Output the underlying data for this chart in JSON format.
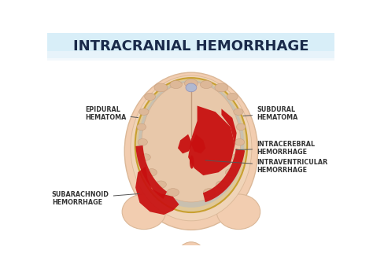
{
  "title": "INTRACRANIAL HEMORRHAGE",
  "title_fontsize": 13,
  "title_color": "#1a2a4a",
  "title_bg_top": "#daeef8",
  "title_bg_bot": "#ffffff",
  "background_color": "#ffffff",
  "skin_color": "#f2cdb0",
  "skin_edge_color": "#dbb898",
  "skull_outer_color": "#f0d4b8",
  "skull_inner_color": "#e8c8a8",
  "dura_color": "#e0c898",
  "dura_line_color": "#c8a030",
  "subarachnoid_color": "#d4c4b0",
  "brain_color": "#e8c8aa",
  "brain_edge_color": "#d4b090",
  "gyri_color": "#ddb898",
  "gyri_edge": "#c8a080",
  "sulci_color": "#c8a888",
  "blood_color": "#c81010",
  "blood_dark": "#a00808",
  "lavender": "#b0b8d0",
  "lavender_edge": "#9090b8",
  "labels": {
    "epidural": "EPIDURAL\nHEMATOMA",
    "subdural": "SUBDURAL\nHEMATOMA",
    "intracerebral": "INTRACEREBRAL\nHEMORRHAGE",
    "intraventricular": "INTRAVENTRICULAR\nHEMORRHAGE",
    "subarachnoid": "SUBARACHNOID\nHEMORRHAGE"
  },
  "label_fontsize": 5.8,
  "annotation_color": "#333333",
  "line_color": "#555555"
}
